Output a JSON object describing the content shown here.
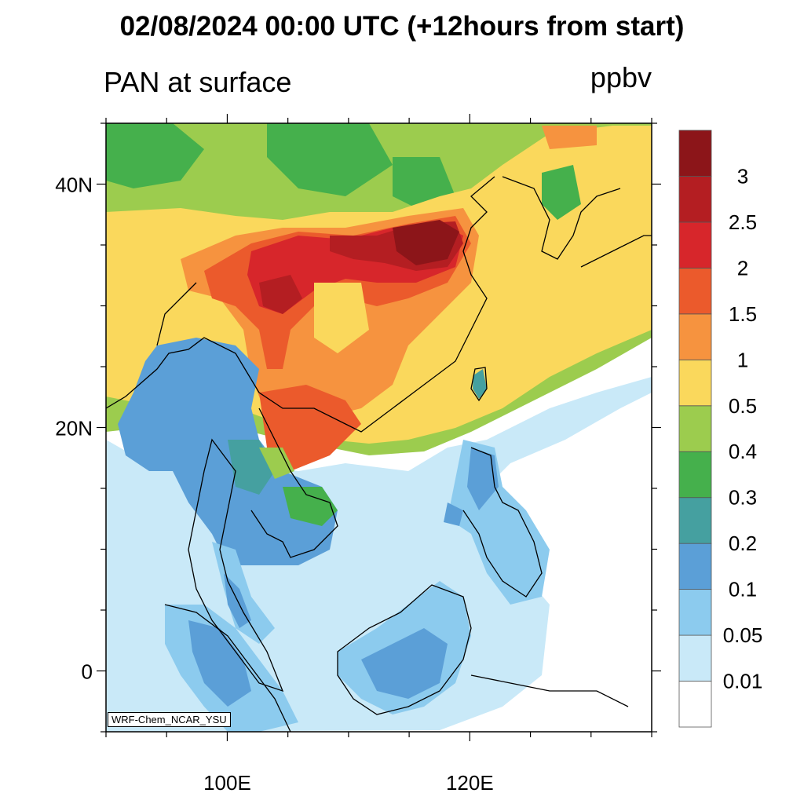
{
  "title": "02/08/2024 00:00 UTC (+12hours from start)",
  "variable_label": "PAN at surface",
  "units_label": "ppbv",
  "credit": "WRF-Chem_NCAR_YSU",
  "lat_labels": [
    {
      "lat": 40,
      "text": "40N"
    },
    {
      "lat": 20,
      "text": "20N"
    },
    {
      "lat": 0,
      "text": "0"
    }
  ],
  "lon_labels": [
    {
      "lon": 100,
      "text": "100E"
    },
    {
      "lon": 120,
      "text": "120E"
    }
  ],
  "map_extent": {
    "lon_min": 90,
    "lon_max": 135,
    "lat_min": -5,
    "lat_max": 45
  },
  "colorbar": {
    "levels": [
      "0.01",
      "0.05",
      "0.1",
      "0.2",
      "0.3",
      "0.4",
      "0.5",
      "1",
      "1.5",
      "2",
      "2.5",
      "3"
    ],
    "colors": [
      "#ffffff",
      "#c9e9f8",
      "#8ccbee",
      "#5b9fd7",
      "#45a0a0",
      "#45b04c",
      "#9ccc4e",
      "#fad85c",
      "#f6933f",
      "#eb5a2c",
      "#d7262b",
      "#b41e22",
      "#8c1519"
    ]
  },
  "regions": [
    {
      "name": "ocean-clean",
      "color": "#ffffff"
    },
    {
      "name": "coastal-halo",
      "color": "#c9e9f8"
    },
    {
      "name": "mainland-background",
      "color": "#9ccc4e"
    },
    {
      "name": "north-china-plume",
      "color": "#b41e22"
    },
    {
      "name": "south-china",
      "color": "#fad85c"
    }
  ]
}
